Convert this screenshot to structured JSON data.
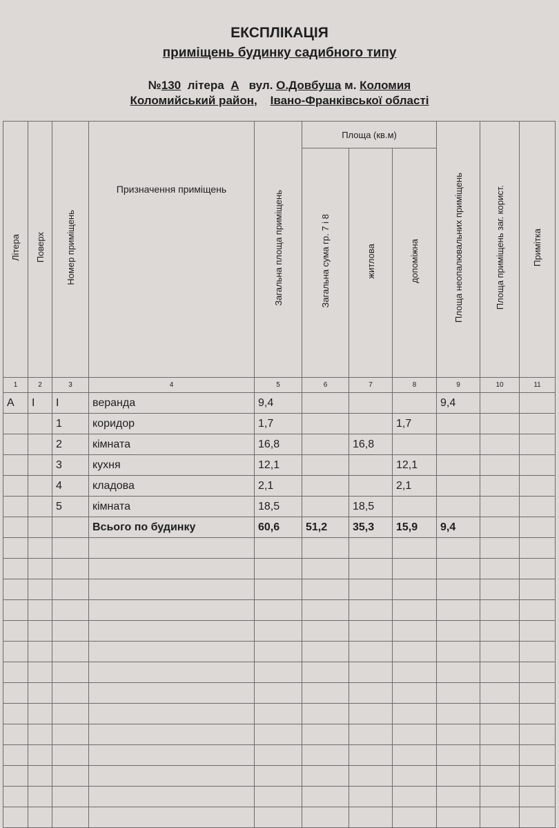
{
  "header": {
    "title": "ЕКСПЛІКАЦІЯ",
    "subtitle": "приміщень будинку садибного типу",
    "number_label": "№",
    "number": "130",
    "litera_label": "літера",
    "litera": "А",
    "street_label": "вул.",
    "street": "О.Довбуша",
    "city_label": "м.",
    "city": "Коломия",
    "district": "Коломийський район",
    "region": "Івано-Франківської області"
  },
  "table": {
    "columns": [
      "Літера",
      "Поверх",
      "Номер приміщень",
      "Призначення приміщень",
      "Загальна площа приміщень",
      "Загальна сума гр. 7 і 8",
      "житлова",
      "допоміжна",
      "Площа неопалювальних приміщень",
      "Площа приміщень заг. корист.",
      "Примітка"
    ],
    "group_header": "Площа (кв.м)",
    "column_numbers": [
      "1",
      "2",
      "3",
      "4",
      "5",
      "6",
      "7",
      "8",
      "9",
      "10",
      "11"
    ],
    "rows": [
      [
        "А",
        "І",
        "І",
        "веранда",
        "9,4",
        "",
        "",
        "",
        "9,4",
        "",
        ""
      ],
      [
        "",
        "",
        "1",
        "коридор",
        "1,7",
        "",
        "",
        "1,7",
        "",
        "",
        ""
      ],
      [
        "",
        "",
        "2",
        "кімната",
        "16,8",
        "",
        "16,8",
        "",
        "",
        "",
        ""
      ],
      [
        "",
        "",
        "3",
        "кухня",
        "12,1",
        "",
        "",
        "12,1",
        "",
        "",
        ""
      ],
      [
        "",
        "",
        "4",
        "кладова",
        "2,1",
        "",
        "",
        "2,1",
        "",
        "",
        ""
      ],
      [
        "",
        "",
        "5",
        "кімната",
        "18,5",
        "",
        "18,5",
        "",
        "",
        "",
        ""
      ]
    ],
    "total": [
      "",
      "",
      "",
      "Всього по будинку",
      "60,6",
      "51,2",
      "35,3",
      "15,9",
      "9,4",
      "",
      ""
    ]
  }
}
